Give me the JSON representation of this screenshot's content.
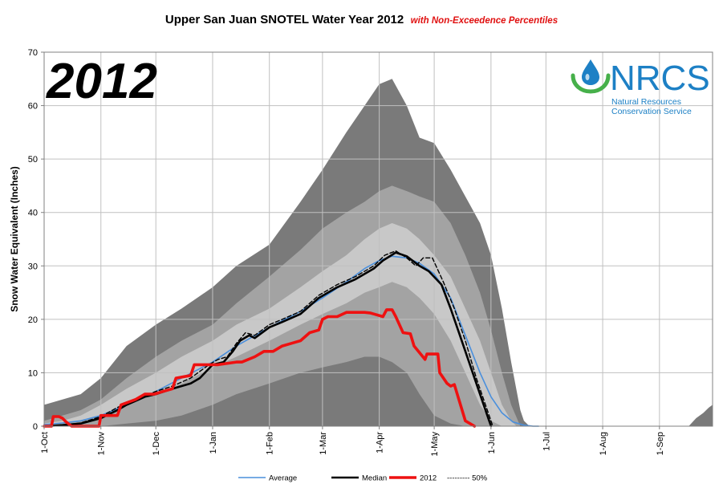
{
  "chart_data": {
    "type": "area",
    "title": "Upper San Juan SNOTEL Water Year 2012",
    "subtitle": "with Non-Exceedence Percentiles",
    "ylabel": "Snow Water Equivalent (Inches)",
    "xlabel": "",
    "ylim": [
      0,
      70
    ],
    "yticks": [
      0,
      10,
      20,
      30,
      40,
      50,
      60,
      70
    ],
    "xlim": [
      0,
      365
    ],
    "categories": [
      "1-Oct",
      "1-Nov",
      "1-Dec",
      "1-Jan",
      "1-Feb",
      "1-Mar",
      "1-Apr",
      "1-May",
      "1-Jun",
      "1-Jul",
      "1-Aug",
      "1-Sep"
    ],
    "category_days": [
      0,
      31,
      61,
      92,
      123,
      152,
      183,
      213,
      244,
      274,
      305,
      336
    ],
    "grid": true,
    "legend_position": "bottom",
    "year_label": "2012",
    "logo": {
      "name": "NRCS",
      "sub1": "Natural Resources",
      "sub2": "Conservation Service"
    },
    "bands": [
      {
        "name": "",
        "color": "#7a7a7a",
        "x": [
          0,
          10,
          20,
          31,
          45,
          61,
          75,
          92,
          105,
          123,
          140,
          152,
          165,
          175,
          183,
          190,
          198,
          205,
          213,
          222,
          230,
          238,
          244,
          250,
          255,
          260,
          262,
          265
        ],
        "upper": [
          4,
          5,
          6,
          9,
          15,
          19,
          22,
          26,
          30,
          34,
          42,
          48,
          55,
          60,
          64,
          65,
          60,
          54,
          53,
          48,
          43,
          38,
          32,
          22,
          12,
          3,
          1,
          0
        ],
        "lower": [
          0,
          0,
          0,
          0,
          0,
          0,
          0,
          0,
          0,
          0,
          0,
          0,
          0,
          0,
          0,
          0,
          0,
          0,
          0,
          0,
          0,
          0,
          0,
          0,
          0,
          0,
          0,
          0
        ]
      },
      {
        "name": "",
        "color": "#a3a3a3",
        "x": [
          0,
          10,
          20,
          31,
          45,
          61,
          75,
          92,
          105,
          123,
          140,
          152,
          165,
          175,
          183,
          190,
          198,
          205,
          213,
          222,
          230,
          238,
          244,
          250,
          255,
          260
        ],
        "upper": [
          1,
          2,
          3,
          5,
          9,
          13,
          16,
          19,
          23,
          28,
          33,
          37,
          40,
          42,
          44,
          45,
          44,
          43,
          42,
          38,
          32,
          25,
          18,
          10,
          4,
          0
        ],
        "lower": [
          0,
          0,
          0,
          0,
          0,
          0,
          0,
          0,
          0,
          0,
          0,
          0,
          0,
          0,
          0,
          0,
          0,
          0,
          0,
          0,
          0,
          0,
          0,
          0,
          0,
          0
        ]
      },
      {
        "name": "",
        "color": "#c8c8c8",
        "x": [
          0,
          10,
          20,
          31,
          45,
          61,
          75,
          92,
          105,
          123,
          140,
          152,
          165,
          175,
          183,
          190,
          198,
          205,
          213,
          222,
          230,
          238,
          244,
          250,
          255,
          258
        ],
        "upper": [
          0.5,
          1,
          2,
          4,
          7,
          10,
          13,
          16,
          19,
          22,
          26,
          29,
          32,
          35,
          37,
          38,
          37,
          35,
          32,
          28,
          22,
          16,
          10,
          4,
          1,
          0
        ],
        "lower": [
          0,
          0,
          0,
          0,
          0,
          0,
          0,
          0,
          0,
          0,
          0,
          0,
          0,
          0,
          0,
          0,
          0,
          0,
          0,
          0,
          0,
          0,
          0,
          0,
          0,
          0
        ]
      },
      {
        "name": "",
        "color": "#a3a3a3",
        "x": [
          0,
          10,
          20,
          31,
          45,
          61,
          75,
          92,
          105,
          123,
          140,
          152,
          165,
          175,
          183,
          190,
          198,
          205,
          213,
          222,
          230,
          238,
          244,
          250
        ],
        "upper": [
          0,
          0.5,
          1,
          2,
          4,
          6,
          8,
          11,
          13,
          16,
          19,
          21,
          23,
          25,
          26,
          27,
          26,
          24,
          21,
          16,
          10,
          4,
          1,
          0
        ],
        "lower": [
          0,
          0,
          0,
          0,
          0,
          0,
          0,
          0,
          0,
          0,
          0,
          0,
          0,
          0,
          0,
          0,
          0,
          0,
          0,
          0,
          0,
          0,
          0,
          0
        ]
      },
      {
        "name": "",
        "color": "#7a7a7a",
        "x": [
          0,
          20,
          31,
          45,
          61,
          75,
          92,
          105,
          123,
          140,
          152,
          165,
          175,
          183,
          190,
          198,
          205,
          213,
          222,
          230
        ],
        "upper": [
          0,
          0,
          0,
          0.5,
          1,
          2,
          4,
          6,
          8,
          10,
          11,
          12,
          13,
          13,
          12,
          10,
          6,
          2,
          0.5,
          0
        ],
        "lower": [
          0,
          0,
          0,
          0,
          0,
          0,
          0,
          0,
          0,
          0,
          0,
          0,
          0,
          0,
          0,
          0,
          0,
          0,
          0,
          0
        ]
      }
    ],
    "late_band": {
      "color": "#7a7a7a",
      "x": [
        352,
        356,
        360,
        363,
        365
      ],
      "upper": [
        0,
        1.5,
        2.5,
        3.5,
        4
      ]
    },
    "series": [
      {
        "name": "Average",
        "color": "#4a8fdc",
        "style": "solid",
        "x": [
          0,
          10,
          20,
          31,
          45,
          61,
          75,
          92,
          105,
          123,
          140,
          152,
          165,
          175,
          183,
          190,
          198,
          205,
          213,
          222,
          230,
          238,
          244,
          250,
          256,
          262,
          267,
          270
        ],
        "y": [
          0.3,
          0.6,
          1,
          2,
          4,
          6.5,
          9,
          12,
          15,
          18.5,
          21.5,
          24,
          27,
          29.5,
          31,
          31.8,
          31.5,
          30.5,
          28.5,
          24,
          17,
          10,
          5.5,
          2.5,
          0.8,
          0.2,
          0,
          0
        ]
      },
      {
        "name": "Median",
        "color": "#000000",
        "style": "solid",
        "x": [
          0,
          10,
          20,
          31,
          40,
          45,
          55,
          61,
          70,
          80,
          85,
          92,
          98,
          103,
          107,
          112,
          115,
          123,
          130,
          140,
          150,
          160,
          170,
          180,
          185,
          192,
          198,
          205,
          210,
          217,
          222,
          227,
          232,
          237,
          241,
          244
        ],
        "y": [
          0,
          0.2,
          0.5,
          1.5,
          3,
          4,
          5.5,
          6,
          7,
          8,
          9,
          11.5,
          12,
          14,
          16,
          17,
          16.5,
          18.5,
          19.5,
          21,
          24,
          26,
          27.5,
          29.5,
          31,
          32.5,
          31.8,
          30,
          29,
          26.5,
          22,
          17,
          12,
          7,
          3,
          0
        ]
      },
      {
        "name": "2012",
        "color": "#ee1111",
        "style": "solid",
        "x": [
          0,
          4,
          5,
          8,
          10,
          12,
          15,
          30,
          31,
          40,
          42,
          50,
          55,
          60,
          65,
          70,
          72,
          80,
          82,
          92,
          95,
          105,
          108,
          115,
          120,
          125,
          130,
          135,
          140,
          145,
          150,
          152,
          155,
          160,
          165,
          170,
          175,
          178,
          180,
          185,
          187,
          190,
          192,
          196,
          200,
          202,
          208,
          209,
          215,
          216,
          220,
          222,
          224,
          230,
          235
        ],
        "y": [
          0,
          0,
          1.8,
          1.8,
          1.5,
          0.8,
          0,
          0,
          2,
          2,
          4,
          5,
          6,
          6,
          6.5,
          7,
          9,
          9.5,
          11.5,
          11.5,
          11.5,
          12,
          12,
          13,
          14,
          14,
          15,
          15.5,
          16,
          17.5,
          18,
          20,
          20.5,
          20.5,
          21.3,
          21.3,
          21.3,
          21.2,
          21,
          20.5,
          21.8,
          21.8,
          20.5,
          17.5,
          17.3,
          15,
          12.5,
          13.5,
          13.5,
          10,
          8,
          7.5,
          7.8,
          1,
          0
        ]
      },
      {
        "name": "50%",
        "color": "#000000",
        "style": "dashed",
        "x": [
          0,
          10,
          20,
          31,
          40,
          50,
          61,
          70,
          80,
          90,
          95,
          100,
          105,
          110,
          115,
          123,
          130,
          140,
          150,
          160,
          170,
          180,
          186,
          192,
          198,
          203,
          207,
          212,
          218,
          224,
          230,
          236,
          242,
          245
        ],
        "y": [
          0,
          0.2,
          0.6,
          1.8,
          3.5,
          5,
          6.5,
          7.5,
          9,
          11.5,
          12.5,
          13,
          15.5,
          17.5,
          17,
          19,
          20,
          21.5,
          24.5,
          26.5,
          28,
          30,
          32,
          32.8,
          31.5,
          30,
          31.5,
          31.5,
          27,
          22,
          16,
          9,
          3,
          0
        ]
      }
    ],
    "legend": [
      {
        "label": "Average",
        "color": "#4a8fdc",
        "style": "solid"
      },
      {
        "label": "Median",
        "color": "#000000",
        "style": "solid"
      },
      {
        "label": "2012",
        "color": "#ee1111",
        "style": "solid"
      },
      {
        "label": "--------- 50%",
        "color": "#000000",
        "style": "text"
      }
    ]
  }
}
